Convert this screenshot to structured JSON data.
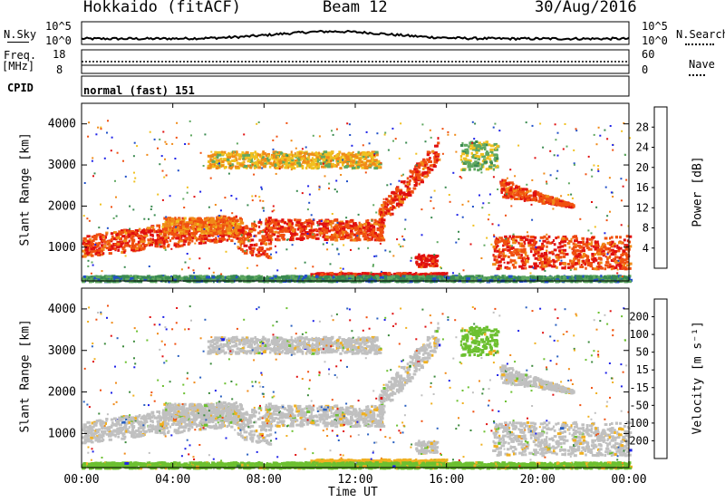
{
  "header": {
    "station": "Hokkaido (fitACF)",
    "beam": "Beam 12",
    "date": "30/Aug/2016"
  },
  "strips": {
    "nsky_label": "N.Sky",
    "nsky_top": "10^5",
    "nsky_bottom": "10^0",
    "nsearch_label": "N.Search",
    "nsearch_top": "10^5",
    "nsearch_bottom": "10^0",
    "freq_label": "Freq.",
    "freq_unit": "[MHz]",
    "freq_top": "18",
    "freq_bottom": "8",
    "nave_label": "Nave",
    "nave_top": "60",
    "nave_bottom": "0",
    "cpid_label": "CPID",
    "cpid_value": "normal (fast) 151"
  },
  "colors": {
    "power": [
      "#1e22e8",
      "#2050c8",
      "#3a8a50",
      "#5fa860",
      "#f0c020",
      "#f08a18",
      "#f05010",
      "#e01010"
    ],
    "velocity": [
      "#1e22e8",
      "#2a60c0",
      "#3c8a3c",
      "#6cc030",
      "#c0c0c0",
      "#f0b020",
      "#f08a18",
      "#f05010",
      "#e01010"
    ]
  },
  "chart_data": [
    {
      "type": "heatmap",
      "name": "Power",
      "ylabel": "Slant Range [km]",
      "xlabel": "Time UT",
      "ylim": [
        180,
        4500
      ],
      "xlim": [
        "00:00",
        "24:00"
      ],
      "yticks": [
        "1000",
        "2000",
        "3000",
        "4000"
      ],
      "xticks": [
        "00:00",
        "04:00",
        "08:00",
        "12:00",
        "16:00",
        "20:00",
        "00:00"
      ],
      "colorbar_label": "Power [dB]",
      "colorbar_ticks": [
        "4",
        "8",
        "12",
        "16",
        "20",
        "24",
        "28"
      ],
      "colorbar_range": [
        0,
        32
      ]
    },
    {
      "type": "heatmap",
      "name": "Velocity",
      "ylabel": "Slant Range [km]",
      "xlabel": "Time UT",
      "ylim": [
        180,
        4500
      ],
      "xlim": [
        "00:00",
        "24:00"
      ],
      "yticks": [
        "1000",
        "2000",
        "3000",
        "4000"
      ],
      "xticks": [
        "00:00",
        "04:00",
        "08:00",
        "12:00",
        "16:00",
        "20:00",
        "00:00"
      ],
      "colorbar_label": "Velocity [m s⁻¹]",
      "colorbar_ticks": [
        "200",
        "100",
        "50",
        "15",
        "-15",
        "-50",
        "-100",
        "-200"
      ]
    }
  ]
}
